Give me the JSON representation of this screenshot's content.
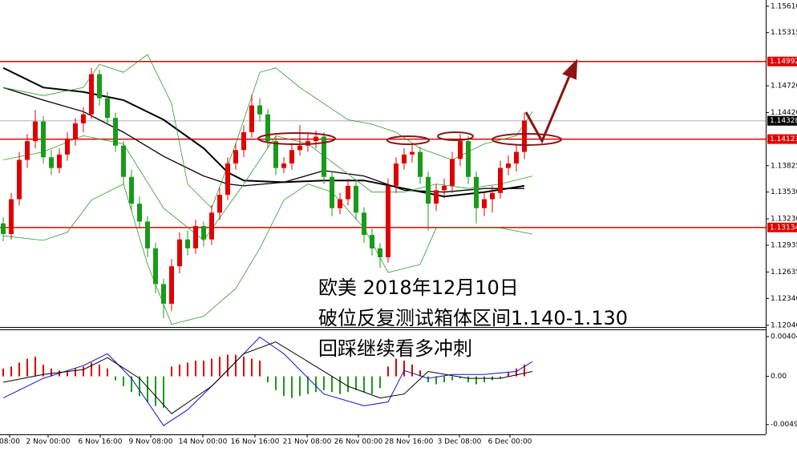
{
  "chart_data": [
    {
      "type": "candlestick",
      "xlim": [
        -0.4,
        95.1
      ],
      "ylim": [
        1.1202,
        1.1568
      ],
      "up_color": "#e00000",
      "down_color": "#1a9a1a",
      "yticks": [
        {
          "value": 1.1561,
          "label": "1.15610"
        },
        1.15315,
        {
          "value": 1.1472,
          "label": "1.14720"
        },
        {
          "value": 1.1442,
          "label": "1.14420"
        },
        1.13825,
        {
          "value": 1.1353,
          "label": "1.13530"
        },
        {
          "value": 1.1323,
          "label": "1.13230"
        },
        1.12935,
        1.12635,
        {
          "value": 1.1234,
          "label": "1.12340"
        },
        {
          "value": 1.1204,
          "label": "1.12040"
        }
      ],
      "xticks": [
        {
          "value": 0.8,
          "label": "08:00"
        },
        {
          "value": 5.6,
          "label": "2 Nov 00:00"
        },
        {
          "value": 12.1,
          "label": "6 Nov 16:00"
        },
        {
          "value": 18.4,
          "label": "9 Nov 08:00"
        },
        {
          "value": 24.9,
          "label": "14 Nov 00:00"
        },
        {
          "value": 31.4,
          "label": "16 Nov 16:00"
        },
        {
          "value": 37.9,
          "label": "21 Nov 08:00"
        },
        {
          "value": 44.3,
          "label": "26 Nov 00:00"
        },
        {
          "value": 50.6,
          "label": "28 Nov 16:00"
        },
        {
          "value": 56.9,
          "label": "3 Dec 08:00"
        },
        {
          "value": 63.2,
          "label": "6 Dec 00:00"
        }
      ],
      "hlines": [
        {
          "value": 1.14992,
          "label": "1.14992",
          "color": "#e00000",
          "label_color": "#e00000"
        },
        {
          "value": 1.14123,
          "label": "1.14123",
          "color": "#e00000",
          "label_color": "#e00000"
        },
        {
          "value": 1.13134,
          "label": "1.13134",
          "color": "#e00000",
          "label_color": "#e00000"
        },
        {
          "value": 1.14328,
          "label": "1.14328",
          "color": "#c8c8c8",
          "label_color": "#000000"
        }
      ],
      "candles": [
        [
          1.1318,
          1.1325,
          1.1298,
          1.1306
        ],
        [
          1.1306,
          1.1352,
          1.13,
          1.1345
        ],
        [
          1.1345,
          1.1398,
          1.1338,
          1.1389
        ],
        [
          1.1389,
          1.1418,
          1.138,
          1.141
        ],
        [
          1.141,
          1.1445,
          1.1402,
          1.1432
        ],
        [
          1.1432,
          1.1438,
          1.1385,
          1.1392
        ],
        [
          1.1392,
          1.14,
          1.1372,
          1.138
        ],
        [
          1.138,
          1.1402,
          1.1374,
          1.1395
        ],
        [
          1.1395,
          1.142,
          1.1388,
          1.1412
        ],
        [
          1.1412,
          1.1436,
          1.1405,
          1.143
        ],
        [
          1.143,
          1.1448,
          1.142,
          1.144
        ],
        [
          1.144,
          1.1492,
          1.1435,
          1.1485
        ],
        [
          1.1485,
          1.149,
          1.145,
          1.1458
        ],
        [
          1.1458,
          1.1465,
          1.1428,
          1.1436
        ],
        [
          1.1436,
          1.1442,
          1.1398,
          1.1405
        ],
        [
          1.1405,
          1.141,
          1.1362,
          1.137
        ],
        [
          1.137,
          1.1378,
          1.1332,
          1.134
        ],
        [
          1.134,
          1.1348,
          1.1312,
          1.132
        ],
        [
          1.132,
          1.1326,
          1.128,
          1.129
        ],
        [
          1.129,
          1.1296,
          1.124,
          1.125
        ],
        [
          1.125,
          1.1256,
          1.1212,
          1.1228
        ],
        [
          1.1228,
          1.1278,
          1.122,
          1.127
        ],
        [
          1.127,
          1.1308,
          1.1262,
          1.13
        ],
        [
          1.13,
          1.131,
          1.1282,
          1.129
        ],
        [
          1.129,
          1.1322,
          1.1284,
          1.1315
        ],
        [
          1.1315,
          1.132,
          1.1292,
          1.13
        ],
        [
          1.13,
          1.1338,
          1.1294,
          1.133
        ],
        [
          1.133,
          1.1358,
          1.1322,
          1.135
        ],
        [
          1.135,
          1.1392,
          1.1344,
          1.1385
        ],
        [
          1.1385,
          1.1408,
          1.1378,
          1.14
        ],
        [
          1.14,
          1.1428,
          1.1392,
          1.142
        ],
        [
          1.142,
          1.1462,
          1.1414,
          1.145
        ],
        [
          1.145,
          1.1458,
          1.1432,
          1.144
        ],
        [
          1.144,
          1.1446,
          1.1402,
          1.141
        ],
        [
          1.141,
          1.1416,
          1.1372,
          1.138
        ],
        [
          1.138,
          1.1392,
          1.1374,
          1.1385
        ],
        [
          1.1385,
          1.1408,
          1.1378,
          1.14
        ],
        [
          1.14,
          1.1428,
          1.1394,
          1.1405
        ],
        [
          1.1405,
          1.1418,
          1.1398,
          1.141
        ],
        [
          1.141,
          1.1422,
          1.1402,
          1.1415
        ],
        [
          1.1415,
          1.142,
          1.1362,
          1.137
        ],
        [
          1.137,
          1.1376,
          1.1326,
          1.1335
        ],
        [
          1.1335,
          1.1352,
          1.1328,
          1.1345
        ],
        [
          1.1345,
          1.1368,
          1.1338,
          1.136
        ],
        [
          1.136,
          1.1366,
          1.1322,
          1.133
        ],
        [
          1.133,
          1.1336,
          1.1296,
          1.1305
        ],
        [
          1.1305,
          1.1312,
          1.1282,
          1.129
        ],
        [
          1.129,
          1.1296,
          1.1268,
          1.128
        ],
        [
          1.128,
          1.1368,
          1.1274,
          1.136
        ],
        [
          1.136,
          1.1392,
          1.1352,
          1.1385
        ],
        [
          1.1385,
          1.1402,
          1.1378,
          1.1395
        ],
        [
          1.1395,
          1.1406,
          1.1386,
          1.1398
        ],
        [
          1.1398,
          1.1404,
          1.1362,
          1.137
        ],
        [
          1.137,
          1.1376,
          1.131,
          1.134
        ],
        [
          1.134,
          1.1362,
          1.1332,
          1.1355
        ],
        [
          1.1355,
          1.1368,
          1.1346,
          1.136
        ],
        [
          1.136,
          1.1398,
          1.1352,
          1.139
        ],
        [
          1.139,
          1.1418,
          1.1382,
          1.141
        ],
        [
          1.141,
          1.1416,
          1.1362,
          1.137
        ],
        [
          1.137,
          1.1376,
          1.1318,
          1.1335
        ],
        [
          1.1335,
          1.1352,
          1.1326,
          1.1345
        ],
        [
          1.1345,
          1.136,
          1.133,
          1.1352
        ],
        [
          1.1352,
          1.1388,
          1.1346,
          1.138
        ],
        [
          1.138,
          1.1394,
          1.1372,
          1.1385
        ],
        [
          1.1385,
          1.1406,
          1.1376,
          1.1398
        ],
        [
          1.1398,
          1.1442,
          1.139,
          1.1433
        ]
      ],
      "lines": [
        {
          "color": "#000000",
          "width": 2,
          "x": [
            0,
            5,
            10,
            15,
            20,
            25,
            28,
            30,
            35,
            40,
            45,
            50,
            55,
            60,
            65
          ],
          "values": [
            1.1492,
            1.147,
            1.1465,
            1.1456,
            1.1434,
            1.1402,
            1.1375,
            1.1366,
            1.1364,
            1.1366,
            1.1366,
            1.1357,
            1.1348,
            1.1353,
            1.136
          ]
        },
        {
          "color": "#000000",
          "width": 1.3,
          "x": [
            0,
            5,
            10,
            15,
            20,
            25,
            28,
            30,
            35,
            40,
            45,
            50,
            55,
            60,
            65
          ],
          "values": [
            1.147,
            1.1456,
            1.1443,
            1.142,
            1.1393,
            1.1371,
            1.1362,
            1.136,
            1.1364,
            1.1377,
            1.1371,
            1.1355,
            1.1353,
            1.1357,
            1.1357
          ]
        },
        {
          "color": "#2e9a2e",
          "width": 0.8,
          "x": [
            0,
            5,
            10,
            12,
            15,
            18,
            21,
            23,
            26,
            29,
            32,
            34,
            37,
            40,
            43,
            46,
            49,
            52,
            56,
            60,
            64,
            66
          ],
          "values": [
            1.147,
            1.1461,
            1.147,
            1.1496,
            1.1487,
            1.1507,
            1.1452,
            1.1362,
            1.1335,
            1.1407,
            1.1487,
            1.1492,
            1.147,
            1.1452,
            1.1434,
            1.1429,
            1.142,
            1.1402,
            1.1389,
            1.1407,
            1.1416,
            1.1443
          ]
        },
        {
          "color": "#2e9a2e",
          "width": 0.8,
          "x": [
            0,
            5,
            10,
            15,
            20,
            25,
            30,
            34,
            38,
            42,
            46,
            50,
            54,
            58,
            62,
            66
          ],
          "values": [
            1.1389,
            1.1398,
            1.1416,
            1.1407,
            1.1335,
            1.1299,
            1.1362,
            1.1416,
            1.1407,
            1.138,
            1.1353,
            1.1353,
            1.1362,
            1.1357,
            1.1362,
            1.1371
          ]
        },
        {
          "color": "#2e9a2e",
          "width": 0.8,
          "x": [
            0,
            5,
            8,
            11,
            15,
            18,
            21,
            25,
            29,
            32,
            35,
            38,
            41,
            45,
            48,
            52,
            54,
            58,
            62,
            66
          ],
          "values": [
            1.1304,
            1.1299,
            1.1308,
            1.1344,
            1.1362,
            1.1272,
            1.1205,
            1.1214,
            1.1245,
            1.129,
            1.1344,
            1.1362,
            1.1353,
            1.1313,
            1.1263,
            1.1272,
            1.1313,
            1.1313,
            1.1313,
            1.1306
          ]
        }
      ],
      "annotations": [
        "欧美 2018年12月10日",
        "破位反复测试箱体区间1.140-1.130",
        "回踩继续看多冲刺"
      ]
    },
    {
      "type": "macd",
      "xlim": [
        -0.4,
        95.1
      ],
      "ylim": [
        -0.0059,
        0.0047
      ],
      "up_color": "#e00000",
      "down_color": "#1a9a1a",
      "yticks": [
        0.00404,
        {
          "value": 0,
          "label": "0.00"
        },
        -0.0049
      ],
      "histogram": [
        0.0008,
        0.001,
        0.0014,
        0.0018,
        0.002,
        0.0012,
        0.0008,
        0.0006,
        0.0006,
        0.0008,
        0.001,
        0.0014,
        0.0012,
        0.0008,
        -0.0004,
        -0.001,
        -0.0016,
        -0.002,
        -0.0026,
        -0.003,
        -0.0032,
        0.001,
        0.0012,
        0.0014,
        0.0016,
        0.0016,
        0.0018,
        0.002,
        0.0022,
        0.0022,
        0.002,
        0.0018,
        0.0016,
        -0.0006,
        -0.0014,
        -0.002,
        -0.0022,
        -0.002,
        -0.0018,
        -0.0016,
        -0.0014,
        -0.0016,
        -0.0018,
        -0.0016,
        -0.0014,
        -0.0016,
        -0.0018,
        -0.0012,
        0.001,
        0.0018,
        0.0016,
        0.0012,
        0.0006,
        -0.0006,
        -0.0008,
        -0.0006,
        -0.0004,
        -0.0002,
        -0.0006,
        -0.0008,
        -0.0006,
        -0.0004,
        -0.0002,
        0.0004,
        0.0008,
        0.0012
      ],
      "lines": [
        {
          "color": "#1010d0",
          "x": [
            0,
            5,
            10,
            13,
            16,
            20,
            23,
            27,
            32,
            35,
            40,
            45,
            48,
            50,
            53,
            56,
            60,
            64,
            66
          ],
          "values": [
            -0.0022,
            -0.0002,
            0.0011,
            0.0023,
            -0.0002,
            -0.005,
            -0.0034,
            -0.0002,
            0.004,
            0.0023,
            -0.0018,
            -0.003,
            -0.0026,
            0.0006,
            -0.0002,
            0.0002,
            0.0002,
            0.0005,
            0.0015
          ]
        },
        {
          "color": "#000000",
          "x": [
            0,
            5,
            10,
            13,
            17,
            21,
            26,
            30,
            34,
            38,
            43,
            47,
            50,
            53,
            58,
            62,
            66
          ],
          "values": [
            -0.0006,
            0.0002,
            0.0007,
            0.0019,
            -0.0002,
            -0.0038,
            -0.001,
            0.0023,
            0.0035,
            0.0015,
            -0.001,
            -0.0022,
            -0.0018,
            0.0005,
            -0.0002,
            -0.0002,
            0.0005
          ]
        }
      ]
    }
  ]
}
